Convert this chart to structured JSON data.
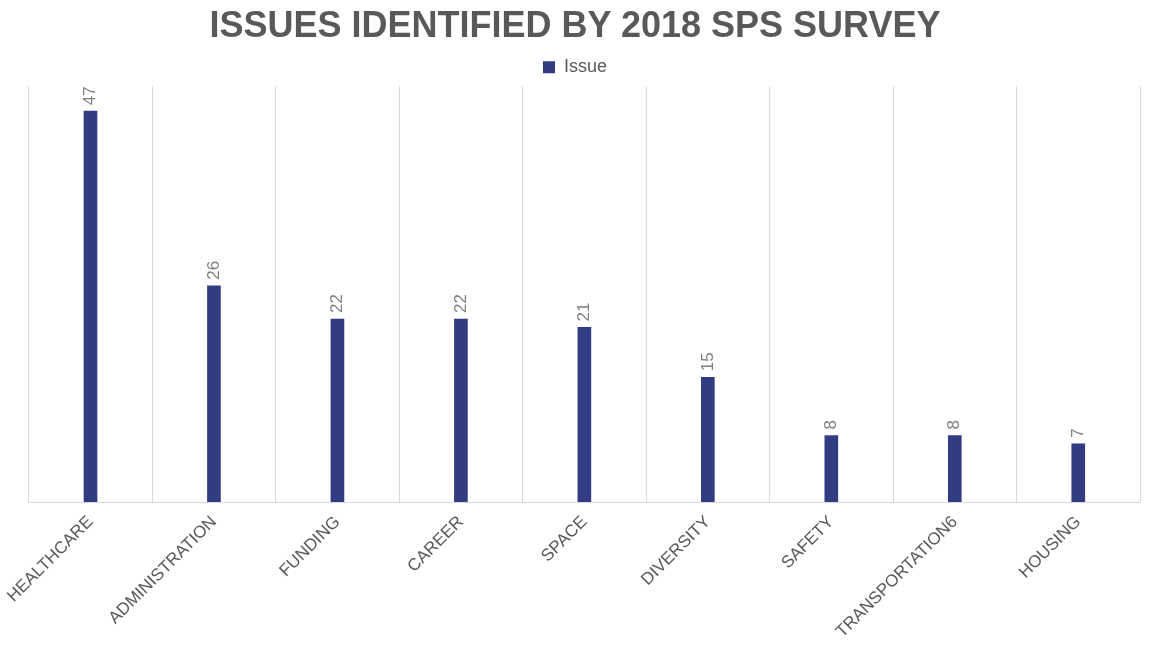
{
  "chart_data": {
    "type": "bar",
    "title": "ISSUES IDENTIFIED BY 2018 SPS SURVEY",
    "categories": [
      "HEALTHCARE",
      "ADMINISTRATION",
      "FUNDING",
      "CAREER",
      "SPACE",
      "DIVERSITY",
      "SAFETY",
      "TRANSPORTATION6",
      "HOUSING"
    ],
    "series": [
      {
        "name": "Issue",
        "color": "#323c82",
        "values": [
          47,
          26,
          22,
          22,
          21,
          15,
          8,
          8,
          7
        ]
      }
    ],
    "ylim": [
      0,
      50
    ],
    "grid": "x",
    "legend": "top",
    "tick_labels": "x",
    "data_labels": true
  }
}
